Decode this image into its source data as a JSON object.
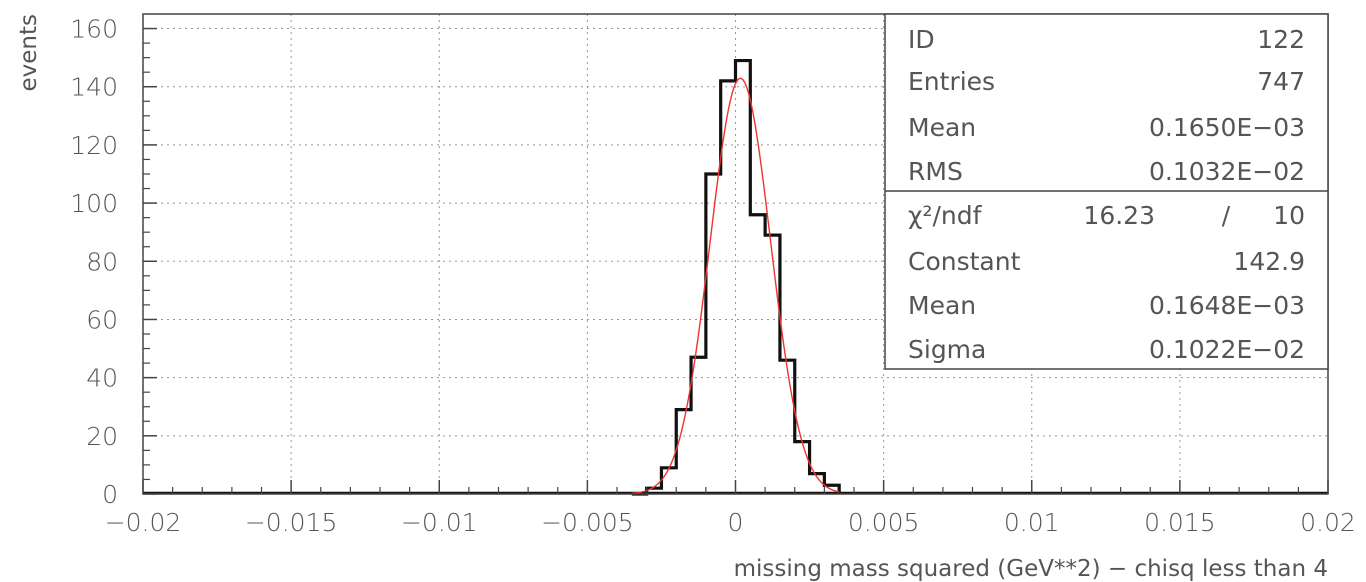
{
  "chart_data": {
    "type": "bar",
    "title": "",
    "xlabel": "missing mass squared (GeV**2) − chisq  less than  4",
    "ylabel": "events",
    "xlim": [
      -0.02,
      0.02
    ],
    "ylim": [
      0,
      165
    ],
    "x_ticks": [
      -0.02,
      -0.015,
      -0.01,
      -0.005,
      0,
      0.005,
      0.01,
      0.015,
      0.02
    ],
    "x_tick_labels": [
      "−0.02",
      "−0.015",
      "−0.01",
      "−0.005",
      "0",
      "0.005",
      "0.01",
      "0.015",
      "0.02"
    ],
    "y_ticks": [
      0,
      20,
      40,
      60,
      80,
      100,
      120,
      140,
      160
    ],
    "y_tick_labels": [
      "0",
      "20",
      "40",
      "60",
      "80",
      "100",
      "120",
      "140",
      "160"
    ],
    "grid": true,
    "legend_position": "top-right",
    "histogram": {
      "name": "",
      "bin_edges": [
        -0.0035,
        -0.003,
        -0.0025,
        -0.002,
        -0.0015,
        -0.001,
        -0.0005,
        0,
        0.0005,
        0.001,
        0.0015,
        0.002,
        0.0025,
        0.003,
        0.0035
      ],
      "counts": [
        0,
        2,
        9,
        29,
        47,
        110,
        142,
        149,
        96,
        89,
        46,
        18,
        7,
        3
      ]
    },
    "fit": {
      "function": "gaussian",
      "constant": 142.9,
      "mean": 0.0001648,
      "sigma": 0.001022,
      "color": "#ee3333"
    },
    "stats_box": {
      "rows": [
        {
          "label": "ID",
          "value": "122"
        },
        {
          "label": "Entries",
          "value": "747"
        },
        {
          "label": "Mean",
          "value": "0.1650E−03"
        },
        {
          "label": "RMS",
          "value": "0.1032E−02"
        }
      ],
      "fit_rows": [
        {
          "label": "χ²/ndf",
          "value": "16.23",
          "sep": "/",
          "value2": "10"
        },
        {
          "label": "Constant",
          "value": "142.9"
        },
        {
          "label": "Mean",
          "value": "0.1648E−03"
        },
        {
          "label": "Sigma",
          "value": "0.1022E−02"
        }
      ]
    }
  }
}
